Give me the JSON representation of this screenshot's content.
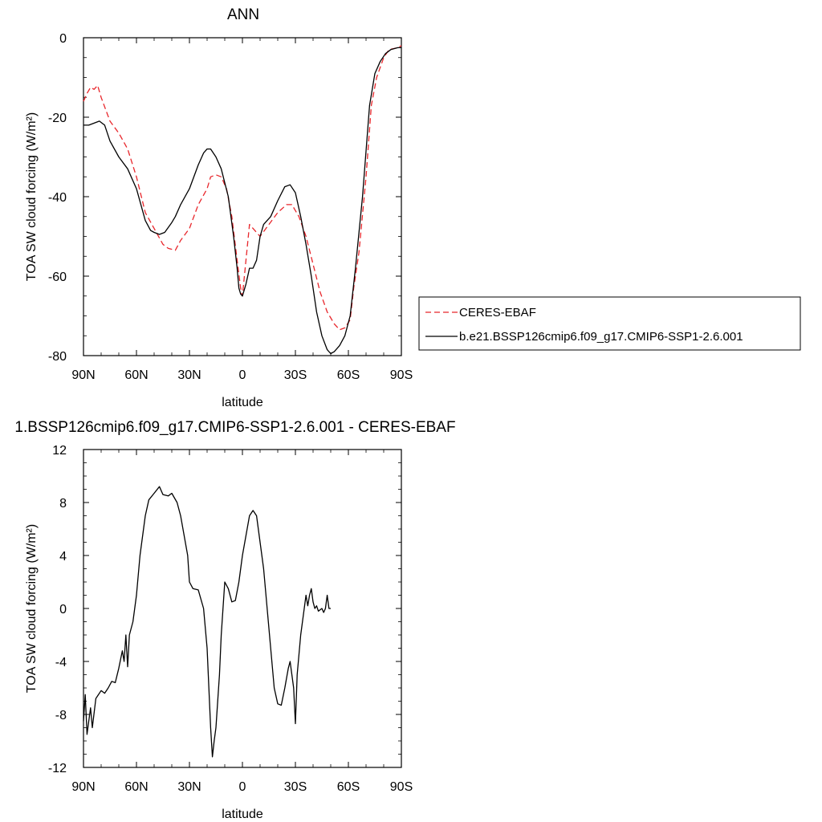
{
  "chart_data": [
    {
      "id": "top",
      "type": "line",
      "title": "ANN",
      "xlabel": "latitude",
      "ylabel": "TOA SW cloud forcing (W/m²)",
      "xlim": [
        90,
        -90
      ],
      "ylim": [
        -80,
        0
      ],
      "x_ticks": [
        {
          "value": 90,
          "label": "90N"
        },
        {
          "value": 60,
          "label": "60N"
        },
        {
          "value": 30,
          "label": "30N"
        },
        {
          "value": 0,
          "label": "0"
        },
        {
          "value": -30,
          "label": "30S"
        },
        {
          "value": -60,
          "label": "60S"
        },
        {
          "value": -90,
          "label": "90S"
        }
      ],
      "y_ticks": [
        0,
        -20,
        -40,
        -60,
        -80
      ],
      "legend": "right",
      "series": [
        {
          "name": "CERES-EBAF",
          "color": "#e8262b",
          "dash": "dashed",
          "points": [
            [
              90,
              -16
            ],
            [
              88,
              -14
            ],
            [
              86,
              -12.5
            ],
            [
              84,
              -13
            ],
            [
              82,
              -12
            ],
            [
              80,
              -15
            ],
            [
              75,
              -21
            ],
            [
              70,
              -24
            ],
            [
              65,
              -28
            ],
            [
              60,
              -35
            ],
            [
              55,
              -44
            ],
            [
              50,
              -48
            ],
            [
              45,
              -52
            ],
            [
              42,
              -53
            ],
            [
              38,
              -53.5
            ],
            [
              35,
              -51
            ],
            [
              30,
              -48
            ],
            [
              25,
              -42
            ],
            [
              20,
              -38
            ],
            [
              18,
              -35
            ],
            [
              15,
              -34.5
            ],
            [
              12,
              -35
            ],
            [
              9,
              -38
            ],
            [
              6,
              -45
            ],
            [
              3,
              -56
            ],
            [
              1,
              -63
            ],
            [
              0,
              -65
            ],
            [
              -2,
              -56
            ],
            [
              -4,
              -47
            ],
            [
              -6,
              -48
            ],
            [
              -10,
              -50
            ],
            [
              -15,
              -47
            ],
            [
              -20,
              -44
            ],
            [
              -25,
              -42
            ],
            [
              -28,
              -42
            ],
            [
              -32,
              -45
            ],
            [
              -36,
              -50
            ],
            [
              -40,
              -57
            ],
            [
              -44,
              -64
            ],
            [
              -48,
              -69
            ],
            [
              -52,
              -72
            ],
            [
              -55,
              -73.5
            ],
            [
              -58,
              -73
            ],
            [
              -61,
              -71
            ],
            [
              -63,
              -63
            ],
            [
              -66,
              -54
            ],
            [
              -70,
              -35
            ],
            [
              -73,
              -17
            ],
            [
              -76,
              -10
            ],
            [
              -80,
              -5
            ],
            [
              -83,
              -3
            ],
            [
              -86,
              -2.7
            ],
            [
              -88,
              -2.5
            ],
            [
              -90,
              -2
            ]
          ]
        },
        {
          "name": "b.e21.BSSP126cmip6.f09_g17.CMIP6-SSP1-2.6.001",
          "color": "#000000",
          "dash": "solid",
          "points": [
            [
              90,
              -22
            ],
            [
              87,
              -22
            ],
            [
              84,
              -21.5
            ],
            [
              81,
              -21
            ],
            [
              78,
              -22
            ],
            [
              75,
              -26
            ],
            [
              70,
              -30
            ],
            [
              65,
              -33
            ],
            [
              60,
              -38
            ],
            [
              55,
              -46
            ],
            [
              52,
              -48.5
            ],
            [
              50,
              -49
            ],
            [
              47,
              -49.5
            ],
            [
              44,
              -49
            ],
            [
              40,
              -46.5
            ],
            [
              38,
              -45
            ],
            [
              35,
              -42
            ],
            [
              30,
              -38
            ],
            [
              25,
              -32
            ],
            [
              22,
              -29
            ],
            [
              20,
              -28
            ],
            [
              18,
              -28
            ],
            [
              15,
              -30
            ],
            [
              12,
              -33
            ],
            [
              8,
              -40
            ],
            [
              5,
              -50
            ],
            [
              3,
              -58
            ],
            [
              2,
              -63
            ],
            [
              1,
              -64.5
            ],
            [
              0,
              -65
            ],
            [
              -2,
              -62
            ],
            [
              -4,
              -58
            ],
            [
              -6,
              -58
            ],
            [
              -8,
              -56
            ],
            [
              -10,
              -50
            ],
            [
              -12,
              -47
            ],
            [
              -16,
              -45
            ],
            [
              -20,
              -41
            ],
            [
              -24,
              -37.5
            ],
            [
              -27,
              -37
            ],
            [
              -30,
              -39
            ],
            [
              -33,
              -45
            ],
            [
              -36,
              -52
            ],
            [
              -39,
              -60
            ],
            [
              -42,
              -69
            ],
            [
              -45,
              -75
            ],
            [
              -48,
              -78.5
            ],
            [
              -50,
              -79.5
            ],
            [
              -52,
              -79
            ],
            [
              -55,
              -77.5
            ],
            [
              -58,
              -75
            ],
            [
              -61,
              -70
            ],
            [
              -64,
              -58
            ],
            [
              -68,
              -40
            ],
            [
              -72,
              -17
            ],
            [
              -75,
              -9
            ],
            [
              -78,
              -6
            ],
            [
              -81,
              -4
            ],
            [
              -84,
              -3
            ],
            [
              -88,
              -2.5
            ],
            [
              -90,
              -2.5
            ]
          ]
        }
      ]
    },
    {
      "id": "bottom",
      "type": "line",
      "title": "1.BSSP126cmip6.f09_g17.CMIP6-SSP1-2.6.001 - CERES-EBAF",
      "xlabel": "latitude",
      "ylabel": "TOA SW cloud forcing (W/m²)",
      "xlim": [
        90,
        -90
      ],
      "ylim": [
        -12,
        12
      ],
      "x_ticks": [
        {
          "value": 90,
          "label": "90N"
        },
        {
          "value": 60,
          "label": "60N"
        },
        {
          "value": 30,
          "label": "30N"
        },
        {
          "value": 0,
          "label": "0"
        },
        {
          "value": -30,
          "label": "30S"
        },
        {
          "value": -60,
          "label": "60S"
        },
        {
          "value": -90,
          "label": "90S"
        }
      ],
      "y_ticks": [
        12,
        8,
        4,
        0,
        -4,
        -8,
        -12
      ],
      "series": [
        {
          "color": "#000000",
          "dash": "solid",
          "points": [
            [
              90,
              -8.5
            ],
            [
              89,
              -6.5
            ],
            [
              88,
              -9.5
            ],
            [
              86,
              -7.5
            ],
            [
              85,
              -9
            ],
            [
              83,
              -6.8
            ],
            [
              82,
              -6.6
            ],
            [
              80,
              -6.2
            ],
            [
              78,
              -6.4
            ],
            [
              76,
              -6
            ],
            [
              74,
              -5.5
            ],
            [
              72,
              -5.6
            ],
            [
              70,
              -4.5
            ],
            [
              68,
              -3.2
            ],
            [
              67,
              -4
            ],
            [
              66,
              -2
            ],
            [
              65,
              -4.4
            ],
            [
              64,
              -2
            ],
            [
              62,
              -1
            ],
            [
              60,
              1
            ],
            [
              58,
              4
            ],
            [
              56,
              6
            ],
            [
              55,
              7
            ],
            [
              53,
              8.2
            ],
            [
              50,
              8.7
            ],
            [
              47,
              9.2
            ],
            [
              45,
              8.6
            ],
            [
              42,
              8.5
            ],
            [
              40,
              8.7
            ],
            [
              37,
              8
            ],
            [
              35,
              7
            ],
            [
              33,
              5.5
            ],
            [
              31,
              4
            ],
            [
              30,
              2
            ],
            [
              28,
              1.5
            ],
            [
              25,
              1.4
            ],
            [
              22,
              0
            ],
            [
              20,
              -3
            ],
            [
              19,
              -6
            ],
            [
              18,
              -9
            ],
            [
              17,
              -11.2
            ],
            [
              16,
              -10
            ],
            [
              15,
              -9
            ],
            [
              13,
              -5
            ],
            [
              12,
              -2
            ],
            [
              11,
              0
            ],
            [
              10,
              2
            ],
            [
              8,
              1.5
            ],
            [
              6,
              0.5
            ],
            [
              4,
              0.6
            ],
            [
              2,
              2
            ],
            [
              0,
              4
            ],
            [
              -2,
              5.5
            ],
            [
              -4,
              7
            ],
            [
              -6,
              7.4
            ],
            [
              -8,
              7
            ],
            [
              -10,
              5
            ],
            [
              -12,
              3
            ],
            [
              -14,
              0
            ],
            [
              -16,
              -3
            ],
            [
              -18,
              -6
            ],
            [
              -20,
              -7.2
            ],
            [
              -22,
              -7.3
            ],
            [
              -24,
              -6
            ],
            [
              -26,
              -4.5
            ],
            [
              -27,
              -4
            ],
            [
              -28,
              -5
            ],
            [
              -29,
              -6
            ],
            [
              -30,
              -8.7
            ],
            [
              -31,
              -5
            ],
            [
              -33,
              -2
            ],
            [
              -35,
              0
            ],
            [
              -36,
              1
            ],
            [
              -37,
              0.2
            ],
            [
              -38,
              1
            ],
            [
              -39,
              1.5
            ],
            [
              -40,
              0.5
            ],
            [
              -41,
              0
            ],
            [
              -42,
              0.2
            ],
            [
              -43,
              -0.2
            ],
            [
              -45,
              0
            ],
            [
              -46,
              -0.3
            ],
            [
              -47,
              0
            ],
            [
              -48,
              1
            ],
            [
              -49,
              0
            ],
            [
              -50,
              0
            ]
          ]
        }
      ]
    }
  ]
}
